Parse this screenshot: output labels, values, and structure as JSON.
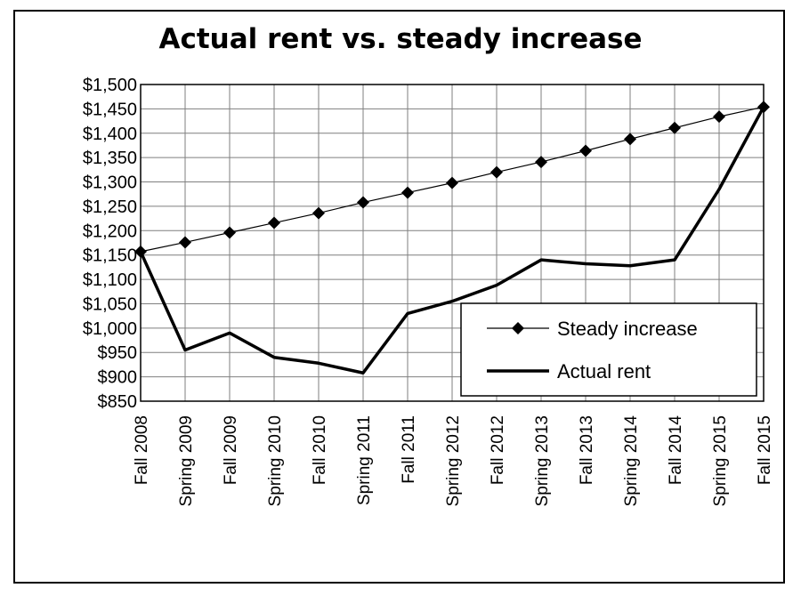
{
  "chart_data": {
    "type": "line",
    "title": "Actual rent vs. steady increase",
    "categories": [
      "Fall 2008",
      "Spring 2009",
      "Fall 2009",
      "Spring 2010",
      "Fall 2010",
      "Spring 2011",
      "Fall 2011",
      "Spring 2012",
      "Fall 2012",
      "Spring 2013",
      "Fall 2013",
      "Spring 2014",
      "Fall 2014",
      "Spring 2015",
      "Fall 2015"
    ],
    "ylim": [
      850,
      1500
    ],
    "ytick_step": 50,
    "ytick_labels": [
      "$850",
      "$900",
      "$950",
      "$1,000",
      "$1,050",
      "$1,100",
      "$1,150",
      "$1,200",
      "$1,250",
      "$1,300",
      "$1,350",
      "$1,400",
      "$1,450",
      "$1,500"
    ],
    "grid": true,
    "legend_position": "lower-right",
    "series": [
      {
        "name": "Steady increase",
        "marker": "diamond",
        "line": "thin",
        "values": [
          1157,
          1176,
          1196,
          1216,
          1236,
          1258,
          1278,
          1298,
          1320,
          1341,
          1364,
          1388,
          1411,
          1434,
          1454
        ]
      },
      {
        "name": "Actual rent",
        "marker": "none",
        "line": "thick",
        "values": [
          1157,
          955,
          990,
          940,
          928,
          908,
          1030,
          1055,
          1088,
          1140,
          1132,
          1128,
          1140,
          1285,
          1454
        ]
      }
    ],
    "colors": {
      "line": "#000000",
      "grid": "#7f7f7f",
      "background": "#ffffff"
    }
  }
}
